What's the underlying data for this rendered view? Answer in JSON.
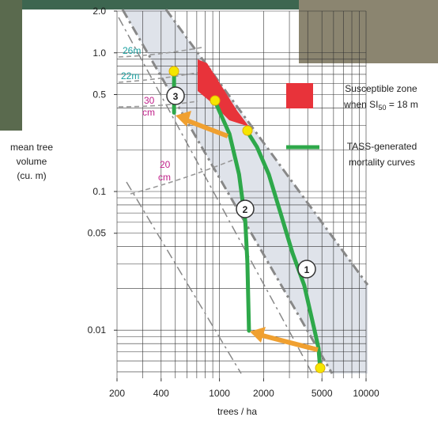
{
  "chart_data": {
    "type": "line",
    "log_x": true,
    "log_y": true,
    "grid": true,
    "x_label": "trees / ha",
    "y_label": [
      "mean tree",
      "volume",
      "(cu. m)"
    ],
    "xlim": [
      200,
      10000
    ],
    "ylim": [
      0.0045,
      2
    ],
    "xticks": [
      200,
      400,
      1000,
      2000,
      5000,
      10000
    ],
    "yticks": [
      {
        "value": 2,
        "label": "2.0"
      },
      {
        "value": 1,
        "label": "1.0"
      },
      0.5,
      0.1,
      0.05,
      0.01
    ],
    "x_grid": [
      200,
      300,
      400,
      500,
      600,
      700,
      800,
      900,
      1000,
      2000,
      3000,
      4000,
      5000,
      6000,
      7000,
      8000,
      9000,
      10000
    ],
    "y_grid": [
      0.005,
      0.006,
      0.007,
      0.008,
      0.009,
      0.01,
      0.02,
      0.03,
      0.04,
      0.05,
      0.06,
      0.07,
      0.08,
      0.09,
      0.1,
      0.2,
      0.3,
      0.4,
      0.5,
      0.6,
      0.7,
      0.8,
      0.9,
      1,
      2
    ],
    "series": [
      {
        "color": "#2ea84a",
        "x": [
          4860,
          4740,
          4460,
          3790,
          3150,
          2620,
          2170,
          1800,
          1550
        ],
        "values": [
          0.0053,
          0.0074,
          0.0099,
          0.021,
          0.036,
          0.069,
          0.133,
          0.21,
          0.27
        ]
      },
      {
        "color": "#2ea84a",
        "x": [
          1590,
          1550,
          1500,
          1360,
          1170,
          930
        ],
        "values": [
          0.0099,
          0.031,
          0.061,
          0.133,
          0.26,
          0.45
        ]
      },
      {
        "color": "#2ea84a",
        "x": [
          490,
          490
        ],
        "values": [
          0.37,
          0.74
        ]
      }
    ],
    "curve_labels": [
      "1",
      "2",
      "3"
    ],
    "annotations": {
      "h26": "26m",
      "h22": "22m",
      "d30": [
        "30",
        "cm"
      ],
      "d20": [
        "20",
        "cm"
      ]
    },
    "legend": [
      {
        "color": "#e8333a",
        "line1": "Susceptible zone",
        "line2": "when SI",
        "sub": "50",
        "line2_end": " = 18 m"
      },
      {
        "color": "#2ea84a",
        "line1": "TASS-generated",
        "line2": "mortality curves"
      }
    ]
  }
}
